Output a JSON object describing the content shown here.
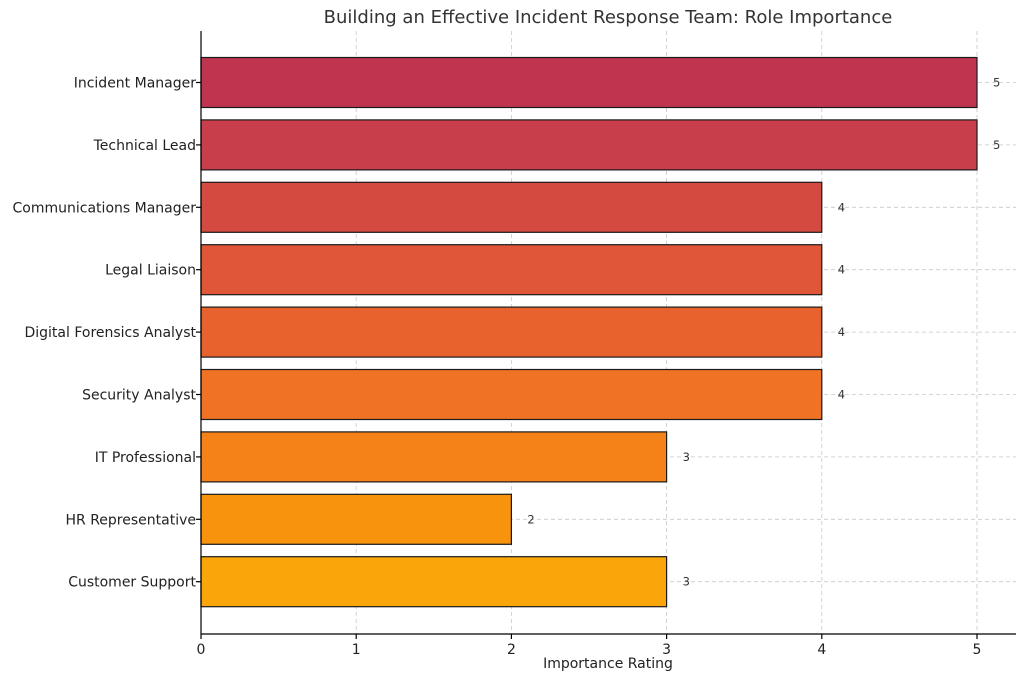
{
  "chart_data": {
    "type": "bar",
    "orientation": "horizontal",
    "title": "Building an Effective Incident Response Team: Role Importance",
    "xlabel": "Importance Rating",
    "ylabel": "",
    "xlim": [
      0,
      5.25
    ],
    "xticks": [
      0,
      1,
      2,
      3,
      4,
      5
    ],
    "grid": true,
    "categories": [
      "Incident Manager",
      "Technical Lead",
      "Communications Manager",
      "Legal Liaison",
      "Digital Forensics Analyst",
      "Security Analyst",
      "IT Professional",
      "HR Representative",
      "Customer Support"
    ],
    "values": [
      5,
      5,
      4,
      4,
      4,
      4,
      3,
      2,
      3
    ],
    "colors": [
      "#bf3550",
      "#c83e4b",
      "#d54a40",
      "#e05638",
      "#e8622e",
      "#f07224",
      "#f58218",
      "#f8930e",
      "#faa50a"
    ]
  }
}
